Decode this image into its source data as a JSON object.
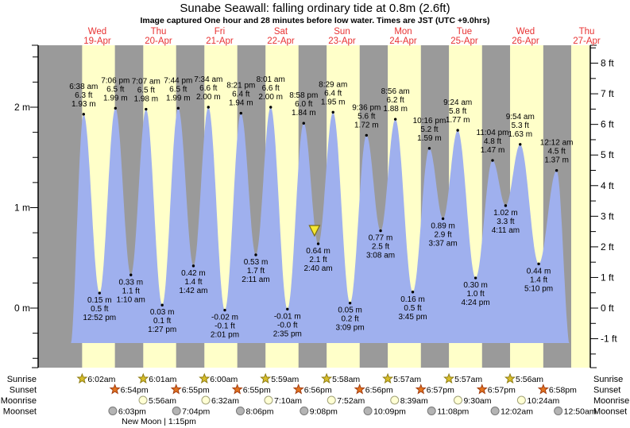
{
  "title": "Sunabe Seawall: falling  ordinary tide at 0.8m (2.6ft)",
  "subtitle": "Image captured One hour and 28 minutes before low water. Times are JST (UTC +9.0hrs)",
  "days": [
    {
      "weekday": "Wed",
      "date": "19-Apr"
    },
    {
      "weekday": "Thu",
      "date": "20-Apr"
    },
    {
      "weekday": "Fri",
      "date": "21-Apr"
    },
    {
      "weekday": "Sat",
      "date": "22-Apr"
    },
    {
      "weekday": "Sun",
      "date": "23-Apr"
    },
    {
      "weekday": "Mon",
      "date": "24-Apr"
    },
    {
      "weekday": "Tue",
      "date": "25-Apr"
    },
    {
      "weekday": "Wed",
      "date": "26-Apr"
    },
    {
      "weekday": "Thu",
      "date": "27-Apr"
    }
  ],
  "left_axis": {
    "unit": "m",
    "labels": [
      "2 m",
      "1 m",
      "0 m"
    ]
  },
  "right_axis": {
    "unit": "ft",
    "labels": [
      "8 ft",
      "7 ft",
      "6 ft",
      "5 ft",
      "4 ft",
      "3 ft",
      "2 ft",
      "1 ft",
      "0 ft",
      "-1 ft"
    ]
  },
  "chart_data": {
    "type": "area",
    "title": "Tide height over time",
    "x_range": "18-Apr afternoon to 27-Apr midday, JST",
    "y_left_axis": {
      "unit": "m",
      "ticks": [
        0,
        1,
        2
      ]
    },
    "y_right_axis": {
      "unit": "ft",
      "ticks": [
        -1,
        0,
        1,
        2,
        3,
        4,
        5,
        6,
        7,
        8
      ]
    },
    "extremes": [
      {
        "type": "high",
        "day": 0,
        "time": "6:38 am",
        "height_m": 1.93,
        "label_m": "1.93 m",
        "label_ft": "6.3 ft"
      },
      {
        "type": "low",
        "day": 0,
        "time": "12:52 pm",
        "height_m": 0.15,
        "label_m": "0.15 m",
        "label_ft": "0.5 ft"
      },
      {
        "type": "high",
        "day": 0,
        "time": "7:06 pm",
        "height_m": 1.99,
        "label_m": "1.99 m",
        "label_ft": "6.5 ft"
      },
      {
        "type": "low",
        "day": 1,
        "time": "1:10 am",
        "height_m": 0.33,
        "label_m": "0.33 m",
        "label_ft": "1.1 ft"
      },
      {
        "type": "high",
        "day": 1,
        "time": "7:07 am",
        "height_m": 1.98,
        "label_m": "1.98 m",
        "label_ft": "6.5 ft"
      },
      {
        "type": "low",
        "day": 1,
        "time": "1:27 pm",
        "height_m": 0.03,
        "label_m": "0.03 m",
        "label_ft": "0.1 ft"
      },
      {
        "type": "high",
        "day": 1,
        "time": "7:44 pm",
        "height_m": 1.99,
        "label_m": "1.99 m",
        "label_ft": "6.5 ft"
      },
      {
        "type": "low",
        "day": 2,
        "time": "1:42 am",
        "height_m": 0.42,
        "label_m": "0.42 m",
        "label_ft": "1.4 ft"
      },
      {
        "type": "high",
        "day": 2,
        "time": "7:34 am",
        "height_m": 2.0,
        "label_m": "2.00 m",
        "label_ft": "6.6 ft"
      },
      {
        "type": "low",
        "day": 2,
        "time": "2:01 pm",
        "height_m": -0.02,
        "label_m": "-0.02 m",
        "label_ft": "-0.1 ft"
      },
      {
        "type": "high",
        "day": 2,
        "time": "8:21 pm",
        "height_m": 1.94,
        "label_m": "1.94 m",
        "label_ft": "6.4 ft"
      },
      {
        "type": "low",
        "day": 3,
        "time": "2:11 am",
        "height_m": 0.53,
        "label_m": "0.53 m",
        "label_ft": "1.7 ft"
      },
      {
        "type": "high",
        "day": 3,
        "time": "8:01 am",
        "height_m": 2.0,
        "label_m": "2.00 m",
        "label_ft": "6.6 ft"
      },
      {
        "type": "low",
        "day": 3,
        "time": "2:35 pm",
        "height_m": -0.01,
        "label_m": "-0.01 m",
        "label_ft": "-0.0 ft"
      },
      {
        "type": "high",
        "day": 3,
        "time": "8:58 pm",
        "height_m": 1.84,
        "label_m": "1.84 m",
        "label_ft": "6.0 ft"
      },
      {
        "type": "low",
        "day": 4,
        "time": "2:40 am",
        "height_m": 0.64,
        "label_m": "0.64 m",
        "label_ft": "2.1 ft"
      },
      {
        "type": "high",
        "day": 4,
        "time": "8:29 am",
        "height_m": 1.95,
        "label_m": "1.95 m",
        "label_ft": "6.4 ft"
      },
      {
        "type": "low",
        "day": 4,
        "time": "3:09 pm",
        "height_m": 0.05,
        "label_m": "0.05 m",
        "label_ft": "0.2 ft"
      },
      {
        "type": "high",
        "day": 4,
        "time": "9:36 pm",
        "height_m": 1.72,
        "label_m": "1.72 m",
        "label_ft": "5.6 ft"
      },
      {
        "type": "low",
        "day": 5,
        "time": "3:08 am",
        "height_m": 0.77,
        "label_m": "0.77 m",
        "label_ft": "2.5 ft"
      },
      {
        "type": "high",
        "day": 5,
        "time": "8:56 am",
        "height_m": 1.88,
        "label_m": "1.88 m",
        "label_ft": "6.2 ft"
      },
      {
        "type": "low",
        "day": 5,
        "time": "3:45 pm",
        "height_m": 0.16,
        "label_m": "0.16 m",
        "label_ft": "0.5 ft"
      },
      {
        "type": "high",
        "day": 5,
        "time": "10:16 pm",
        "height_m": 1.59,
        "label_m": "1.59 m",
        "label_ft": "5.2 ft"
      },
      {
        "type": "low",
        "day": 6,
        "time": "3:37 am",
        "height_m": 0.89,
        "label_m": "0.89 m",
        "label_ft": "2.9 ft"
      },
      {
        "type": "high",
        "day": 6,
        "time": "9:24 am",
        "height_m": 1.77,
        "label_m": "1.77 m",
        "label_ft": "5.8 ft"
      },
      {
        "type": "low",
        "day": 6,
        "time": "4:24 pm",
        "height_m": 0.3,
        "label_m": "0.30 m",
        "label_ft": "1.0 ft"
      },
      {
        "type": "high",
        "day": 6,
        "time": "11:04 pm",
        "height_m": 1.47,
        "label_m": "1.47 m",
        "label_ft": "4.8 ft"
      },
      {
        "type": "low",
        "day": 7,
        "time": "4:11 am",
        "height_m": 1.02,
        "label_m": "1.02 m",
        "label_ft": "3.3 ft"
      },
      {
        "type": "high",
        "day": 7,
        "time": "9:54 am",
        "height_m": 1.63,
        "label_m": "1.63 m",
        "label_ft": "5.3 ft"
      },
      {
        "type": "low",
        "day": 7,
        "time": "5:10 pm",
        "height_m": 0.44,
        "label_m": "0.44 m",
        "label_ft": "1.4 ft"
      },
      {
        "type": "high",
        "day": 8,
        "time": "12:12 am",
        "height_m": 1.37,
        "label_m": "1.37 m",
        "label_ft": "4.5 ft"
      }
    ]
  },
  "current_time_marker": {
    "day": 4,
    "time": "1:12am",
    "icon": "current-time-triangle-icon"
  },
  "astro": {
    "rows": [
      {
        "name": "Sunrise",
        "marker": "sunrise-star-icon",
        "entries": [
          {
            "day": 0,
            "time": "6:02am"
          },
          {
            "day": 1,
            "time": "6:01am"
          },
          {
            "day": 2,
            "time": "6:00am"
          },
          {
            "day": 3,
            "time": "5:59am"
          },
          {
            "day": 4,
            "time": "5:58am"
          },
          {
            "day": 5,
            "time": "5:57am"
          },
          {
            "day": 6,
            "time": "5:57am"
          },
          {
            "day": 7,
            "time": "5:56am"
          }
        ]
      },
      {
        "name": "Sunset",
        "marker": "sunset-star-icon",
        "entries": [
          {
            "day": 0,
            "time": "6:54pm"
          },
          {
            "day": 1,
            "time": "6:55pm"
          },
          {
            "day": 2,
            "time": "6:55pm"
          },
          {
            "day": 3,
            "time": "6:56pm"
          },
          {
            "day": 4,
            "time": "6:56pm"
          },
          {
            "day": 5,
            "time": "6:57pm"
          },
          {
            "day": 6,
            "time": "6:57pm"
          },
          {
            "day": 7,
            "time": "6:58pm"
          }
        ]
      },
      {
        "name": "Moonrise",
        "marker": "moonrise-circle-icon",
        "entries": [
          {
            "day": 1,
            "time": "5:56am"
          },
          {
            "day": 2,
            "time": "6:32am"
          },
          {
            "day": 3,
            "time": "7:10am"
          },
          {
            "day": 4,
            "time": "7:52am"
          },
          {
            "day": 5,
            "time": "8:39am"
          },
          {
            "day": 6,
            "time": "9:30am"
          },
          {
            "day": 7,
            "time": "10:24am"
          }
        ]
      },
      {
        "name": "Moonset",
        "marker": "moonset-circle-icon",
        "entries": [
          {
            "day": 0,
            "time": "6:03pm"
          },
          {
            "day": 1,
            "time": "7:04pm"
          },
          {
            "day": 2,
            "time": "8:06pm"
          },
          {
            "day": 3,
            "time": "9:08pm"
          },
          {
            "day": 4,
            "time": "10:09pm"
          },
          {
            "day": 5,
            "time": "11:08pm"
          },
          {
            "day": 7,
            "time": "12:02am"
          },
          {
            "day": 8,
            "time": "12:50am"
          }
        ]
      }
    ],
    "moon_phase": "New Moon | 1:15pm"
  },
  "colors": {
    "night": "#9a9a9a",
    "daylight": "#ffffc9",
    "tide": "#9fb0ee",
    "day_label": "#e83232",
    "sunrise_star": "#d7bd2a",
    "sunset_star": "#e2731f",
    "moonrise_circle": "#ffffd4",
    "moonset_circle": "#b4b4b4",
    "marker": "#f5e832"
  }
}
